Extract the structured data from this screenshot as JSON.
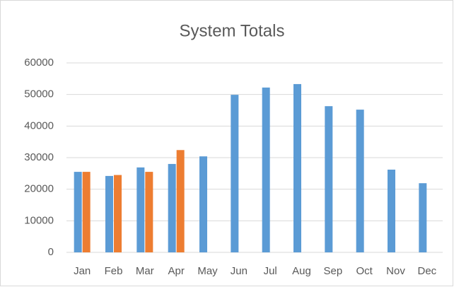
{
  "chart_data": {
    "type": "bar",
    "title": "System Totals",
    "categories": [
      "Jan",
      "Feb",
      "Mar",
      "Apr",
      "May",
      "Jun",
      "Jul",
      "Aug",
      "Sep",
      "Oct",
      "Nov",
      "Dec"
    ],
    "series": [
      {
        "color": "#5b9bd5",
        "values": [
          25500,
          24200,
          26900,
          28000,
          30400,
          49900,
          52200,
          53300,
          46300,
          45200,
          26200,
          21900
        ]
      },
      {
        "color": "#ed7d31",
        "values": [
          25500,
          24500,
          25500,
          32400,
          null,
          null,
          null,
          null,
          null,
          null,
          null,
          null
        ]
      }
    ],
    "ylim": [
      0,
      60000
    ],
    "yticks": [
      0,
      10000,
      20000,
      30000,
      40000,
      50000,
      60000
    ],
    "grid": true
  }
}
